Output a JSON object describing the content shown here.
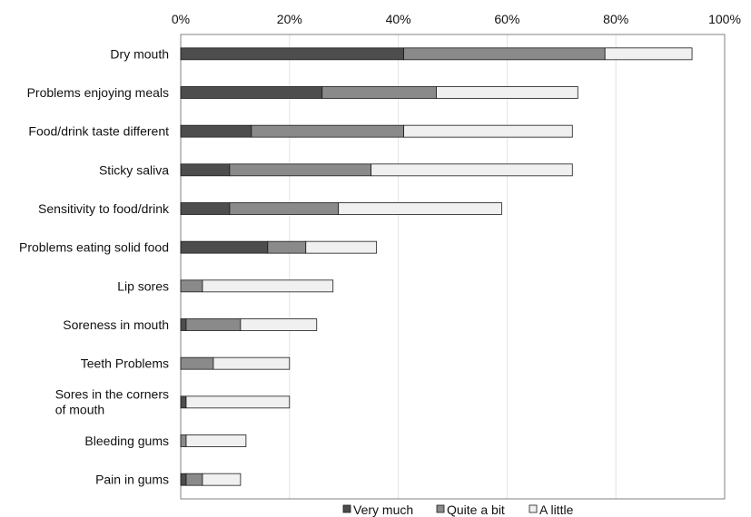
{
  "chart_data": {
    "type": "bar",
    "orientation": "horizontal",
    "stacked": true,
    "title": "",
    "xlabel": "",
    "ylabel": "",
    "xlim": [
      0,
      100
    ],
    "x_ticks": [
      "0%",
      "20%",
      "40%",
      "60%",
      "80%",
      "100%"
    ],
    "x_axis_position": "top",
    "grid": true,
    "legend_position": "bottom",
    "categories": [
      "Dry mouth",
      "Problems enjoying meals",
      "Food/drink taste different",
      "Sticky saliva",
      "Sensitivity to food/drink",
      "Problems eating solid food",
      "Lip sores",
      "Soreness in mouth",
      "Teeth Problems",
      "Sores in the corners of mouth",
      "Bleeding gums",
      "Pain in gums"
    ],
    "series": [
      {
        "name": "Very much",
        "color": "#4d4d4d",
        "values": [
          41,
          26,
          13,
          9,
          9,
          16,
          0,
          1,
          0,
          1,
          0,
          1
        ]
      },
      {
        "name": "Quite a bit",
        "color": "#8a8a8a",
        "values": [
          37,
          21,
          28,
          26,
          20,
          7,
          4,
          10,
          6,
          0,
          1,
          3
        ]
      },
      {
        "name": "A little",
        "color": "#f0f0f0",
        "values": [
          16,
          26,
          31,
          37,
          30,
          13,
          24,
          14,
          14,
          19,
          11,
          7
        ]
      }
    ]
  }
}
